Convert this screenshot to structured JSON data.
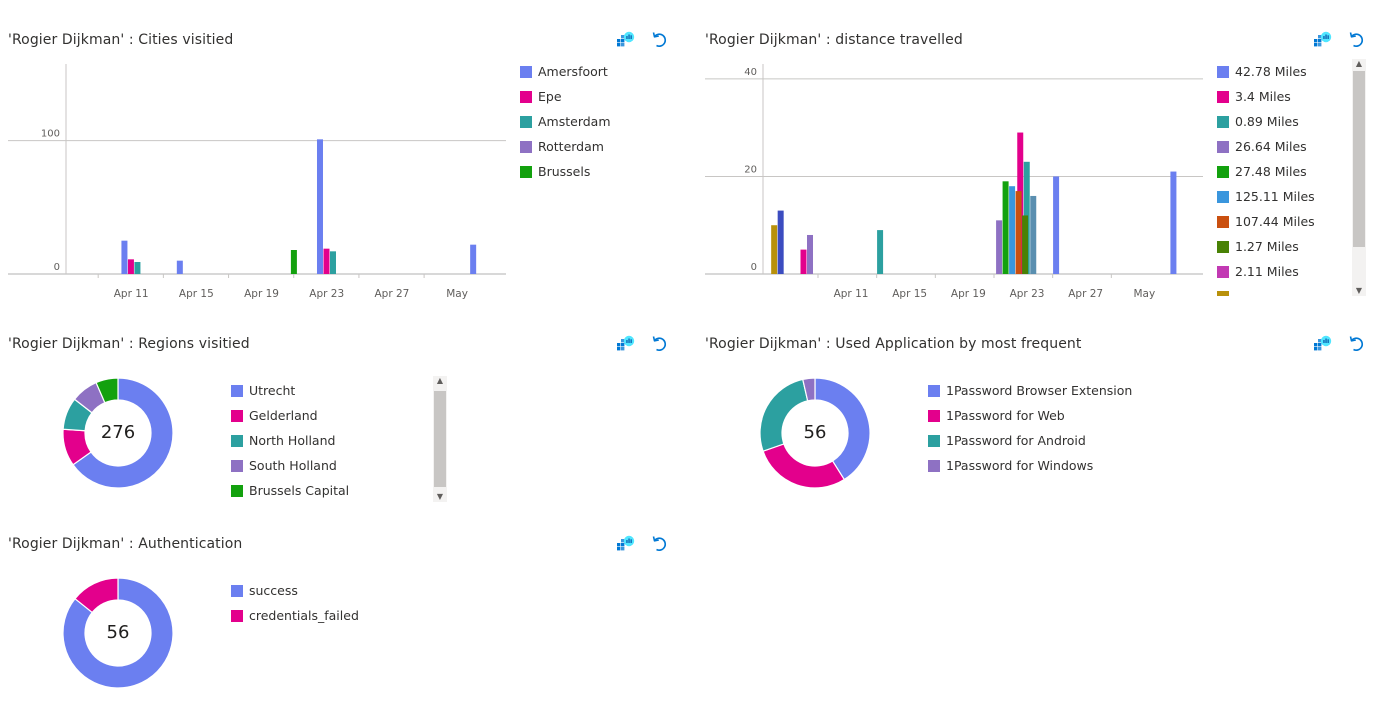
{
  "panels": {
    "cities": {
      "title": "'Rogier Dijkman' : Cities visitied",
      "legend": [
        {
          "label": "Amersfoort",
          "color": "#6b7ff0"
        },
        {
          "label": "Epe",
          "color": "#e3008c"
        },
        {
          "label": "Amsterdam",
          "color": "#2ca0a0"
        },
        {
          "label": "Rotterdam",
          "color": "#8e71c3"
        },
        {
          "label": "Brussels",
          "color": "#13a10e"
        }
      ]
    },
    "distance": {
      "title": "'Rogier Dijkman' : distance travelled",
      "legend": [
        {
          "label": "42.78 Miles",
          "color": "#6b7ff0"
        },
        {
          "label": "3.4 Miles",
          "color": "#e3008c"
        },
        {
          "label": "0.89 Miles",
          "color": "#2ca0a0"
        },
        {
          "label": "26.64 Miles",
          "color": "#8e71c3"
        },
        {
          "label": "27.48 Miles",
          "color": "#13a10e"
        },
        {
          "label": "125.11 Miles",
          "color": "#3a96dd"
        },
        {
          "label": "107.44 Miles",
          "color": "#ca5010"
        },
        {
          "label": "1.27 Miles",
          "color": "#498205"
        },
        {
          "label": "2.11 Miles",
          "color": "#c239b3"
        },
        {
          "label": "",
          "color": "#b8910b"
        }
      ]
    },
    "regions": {
      "title": "'Rogier Dijkman' : Regions visitied",
      "total": "276",
      "legend": [
        {
          "label": "Utrecht",
          "color": "#6b7ff0"
        },
        {
          "label": "Gelderland",
          "color": "#e3008c"
        },
        {
          "label": "North Holland",
          "color": "#2ca0a0"
        },
        {
          "label": "South Holland",
          "color": "#8e71c3"
        },
        {
          "label": "Brussels Capital",
          "color": "#13a10e"
        }
      ]
    },
    "apps": {
      "title": "'Rogier Dijkman' : Used Application by most frequent",
      "total": "56",
      "legend": [
        {
          "label": "1Password Browser Extension",
          "color": "#6b7ff0"
        },
        {
          "label": "1Password for Web",
          "color": "#e3008c"
        },
        {
          "label": "1Password for Android",
          "color": "#2ca0a0"
        },
        {
          "label": "1Password for Windows",
          "color": "#8e71c3"
        }
      ]
    },
    "auth": {
      "title": "'Rogier Dijkman' : Authentication",
      "total": "56",
      "legend": [
        {
          "label": "success",
          "color": "#6b7ff0"
        },
        {
          "label": "credentials_failed",
          "color": "#e3008c"
        }
      ]
    }
  },
  "icons": {
    "pin": "pin-to-dashboard-icon",
    "refresh": "refresh-icon"
  },
  "chart_data": [
    {
      "id": "cities",
      "type": "bar",
      "title": "'Rogier Dijkman' : Cities visitied",
      "ylim": [
        0,
        150
      ],
      "yticks": [
        0,
        100
      ],
      "xlim": [
        "2023-04-07",
        "2023-05-04"
      ],
      "xticks": [
        {
          "label": "Apr 11",
          "date": "2023-04-11"
        },
        {
          "label": "Apr 15",
          "date": "2023-04-15"
        },
        {
          "label": "Apr 19",
          "date": "2023-04-19"
        },
        {
          "label": "Apr 23",
          "date": "2023-04-23"
        },
        {
          "label": "Apr 27",
          "date": "2023-04-27"
        },
        {
          "label": "May",
          "date": "2023-05-01"
        }
      ],
      "grid": true,
      "legend_position": "right",
      "series": [
        {
          "name": "Amersfoort",
          "color": "#6b7ff0",
          "points": [
            {
              "x": "2023-04-11",
              "y": 25
            },
            {
              "x": "2023-04-14",
              "y": 10
            },
            {
              "x": "2023-04-23",
              "y": 101
            },
            {
              "x": "2023-05-02",
              "y": 22
            }
          ]
        },
        {
          "name": "Epe",
          "color": "#e3008c",
          "points": [
            {
              "x": "2023-04-11",
              "y": 11
            },
            {
              "x": "2023-04-23",
              "y": 19
            }
          ]
        },
        {
          "name": "Amsterdam",
          "color": "#2ca0a0",
          "points": [
            {
              "x": "2023-04-11",
              "y": 9
            },
            {
              "x": "2023-04-23",
              "y": 17
            }
          ]
        },
        {
          "name": "Rotterdam",
          "color": "#8e71c3",
          "points": []
        },
        {
          "name": "Brussels",
          "color": "#13a10e",
          "points": [
            {
              "x": "2023-04-21",
              "y": 18
            }
          ]
        }
      ]
    },
    {
      "id": "distance",
      "type": "bar",
      "title": "'Rogier Dijkman' : distance travelled",
      "ylim": [
        0,
        41
      ],
      "yticks": [
        0,
        20,
        40
      ],
      "xlim": [
        "2023-04-05",
        "2023-05-05"
      ],
      "xticks": [
        {
          "label": "Apr 11",
          "date": "2023-04-11"
        },
        {
          "label": "Apr 15",
          "date": "2023-04-15"
        },
        {
          "label": "Apr 19",
          "date": "2023-04-19"
        },
        {
          "label": "Apr 23",
          "date": "2023-04-23"
        },
        {
          "label": "Apr 27",
          "date": "2023-04-27"
        },
        {
          "label": "May",
          "date": "2023-05-01"
        }
      ],
      "grid": true,
      "legend_position": "right",
      "series": [
        {
          "name": "42.78 Miles",
          "color": "#6b7ff0",
          "points": [
            {
              "x": "2023-04-25",
              "y": 20
            },
            {
              "x": "2023-05-03",
              "y": 21
            }
          ]
        },
        {
          "name": "3.4 Miles",
          "color": "#e3008c",
          "points": [
            {
              "x": "2023-04-08",
              "y": 5
            },
            {
              "x": "2023-04-23",
              "y": 29
            }
          ]
        },
        {
          "name": "0.89 Miles",
          "color": "#2ca0a0",
          "points": [
            {
              "x": "2023-04-13",
              "y": 9
            },
            {
              "x": "2023-04-23",
              "y": 23
            }
          ]
        },
        {
          "name": "26.64 Miles",
          "color": "#8e71c3",
          "points": [
            {
              "x": "2023-04-08",
              "y": 8
            },
            {
              "x": "2023-04-22",
              "y": 11
            }
          ]
        },
        {
          "name": "27.48 Miles",
          "color": "#13a10e",
          "points": [
            {
              "x": "2023-04-22",
              "y": 19
            }
          ]
        },
        {
          "name": "125.11 Miles",
          "color": "#3a96dd",
          "points": [
            {
              "x": "2023-04-22",
              "y": 18
            }
          ]
        },
        {
          "name": "107.44 Miles",
          "color": "#ca5010",
          "points": [
            {
              "x": "2023-04-22",
              "y": 17
            }
          ]
        },
        {
          "name": "1.27 Miles",
          "color": "#498205",
          "points": [
            {
              "x": "2023-04-22",
              "y": 12
            }
          ]
        },
        {
          "name": "2.11 Miles",
          "color": "#c239b3",
          "points": []
        },
        {
          "name": "",
          "color": "#b8910b",
          "points": [
            {
              "x": "2023-04-06",
              "y": 10
            }
          ]
        },
        {
          "name": "",
          "color": "#3b4cc0",
          "points": [
            {
              "x": "2023-04-06",
              "y": 13
            }
          ]
        },
        {
          "name": "",
          "color": "#5a8fb0",
          "points": [
            {
              "x": "2023-04-23",
              "y": 16
            }
          ]
        }
      ]
    },
    {
      "id": "regions",
      "type": "pie",
      "title": "'Rogier Dijkman' : Regions visitied",
      "total": 276,
      "slices": [
        {
          "name": "Utrecht",
          "value": 180,
          "color": "#6b7ff0"
        },
        {
          "name": "Gelderland",
          "value": 30,
          "color": "#e3008c"
        },
        {
          "name": "North Holland",
          "value": 26,
          "color": "#2ca0a0"
        },
        {
          "name": "South Holland",
          "value": 22,
          "color": "#8e71c3"
        },
        {
          "name": "Brussels Capital",
          "value": 18,
          "color": "#13a10e"
        }
      ]
    },
    {
      "id": "apps",
      "type": "pie",
      "title": "'Rogier Dijkman' : Used Application by most frequent",
      "total": 56,
      "slices": [
        {
          "name": "1Password Browser Extension",
          "value": 23,
          "color": "#6b7ff0"
        },
        {
          "name": "1Password for Web",
          "value": 16,
          "color": "#e3008c"
        },
        {
          "name": "1Password for Android",
          "value": 15,
          "color": "#2ca0a0"
        },
        {
          "name": "1Password for Windows",
          "value": 2,
          "color": "#8e71c3"
        }
      ]
    },
    {
      "id": "auth",
      "type": "pie",
      "title": "'Rogier Dijkman' : Authentication",
      "total": 56,
      "slices": [
        {
          "name": "success",
          "value": 48,
          "color": "#6b7ff0"
        },
        {
          "name": "credentials_failed",
          "value": 8,
          "color": "#e3008c"
        }
      ]
    }
  ]
}
